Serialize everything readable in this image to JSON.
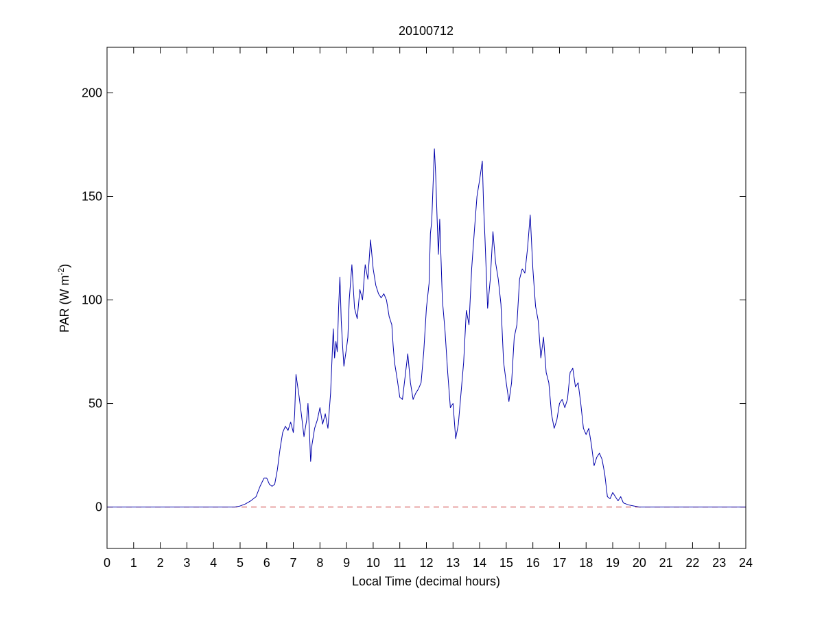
{
  "chart_data": {
    "type": "line",
    "title": "20100712",
    "xlabel": "Local Time (decimal hours)",
    "ylabel": {
      "base": "PAR (W m",
      "superscript": "-2",
      "tail": ")"
    },
    "xlim": [
      0,
      24
    ],
    "ylim": [
      -20,
      222
    ],
    "xticks": [
      0,
      1,
      2,
      3,
      4,
      5,
      6,
      7,
      8,
      9,
      10,
      11,
      12,
      13,
      14,
      15,
      16,
      17,
      18,
      19,
      20,
      21,
      22,
      23,
      24
    ],
    "yticks": [
      0,
      50,
      100,
      150,
      200
    ],
    "grid": false,
    "series": [
      {
        "color": "#0000aa",
        "style": "solid",
        "x": [
          0,
          4.8,
          5.0,
          5.2,
          5.4,
          5.5,
          5.6,
          5.75,
          5.9,
          6.0,
          6.1,
          6.2,
          6.3,
          6.4,
          6.5,
          6.6,
          6.7,
          6.8,
          6.9,
          7.0,
          7.05,
          7.1,
          7.2,
          7.3,
          7.4,
          7.5,
          7.55,
          7.6,
          7.65,
          7.7,
          7.8,
          7.9,
          8.0,
          8.1,
          8.2,
          8.3,
          8.4,
          8.5,
          8.55,
          8.6,
          8.65,
          8.7,
          8.75,
          8.8,
          8.85,
          8.9,
          9.0,
          9.05,
          9.1,
          9.2,
          9.3,
          9.4,
          9.5,
          9.6,
          9.7,
          9.8,
          9.9,
          10.0,
          10.1,
          10.2,
          10.3,
          10.4,
          10.5,
          10.6,
          10.7,
          10.75,
          10.8,
          10.9,
          11.0,
          11.1,
          11.2,
          11.3,
          11.4,
          11.5,
          11.6,
          11.7,
          11.8,
          11.9,
          12.0,
          12.1,
          12.15,
          12.2,
          12.3,
          12.35,
          12.4,
          12.45,
          12.5,
          12.6,
          12.7,
          12.8,
          12.9,
          13.0,
          13.1,
          13.2,
          13.3,
          13.4,
          13.5,
          13.6,
          13.7,
          13.8,
          13.9,
          14.0,
          14.1,
          14.15,
          14.2,
          14.3,
          14.4,
          14.5,
          14.6,
          14.7,
          14.8,
          14.9,
          15.0,
          15.1,
          15.2,
          15.3,
          15.4,
          15.5,
          15.6,
          15.7,
          15.8,
          15.9,
          16.0,
          16.1,
          16.2,
          16.3,
          16.4,
          16.5,
          16.6,
          16.7,
          16.8,
          16.9,
          17.0,
          17.1,
          17.2,
          17.3,
          17.4,
          17.5,
          17.6,
          17.7,
          17.8,
          17.9,
          18.0,
          18.1,
          18.2,
          18.3,
          18.4,
          18.5,
          18.6,
          18.7,
          18.8,
          18.9,
          19.0,
          19.1,
          19.2,
          19.3,
          19.4,
          19.5,
          19.6,
          19.8,
          20.0,
          24
        ],
        "y": [
          0,
          0,
          0.5,
          1.5,
          3,
          4,
          5,
          10,
          14,
          14,
          11,
          10,
          11,
          18,
          28,
          36,
          39,
          37,
          41,
          36,
          45,
          64,
          55,
          45,
          34,
          42,
          50,
          38,
          22,
          30,
          38,
          42,
          48,
          40,
          45,
          38,
          55,
          86,
          72,
          80,
          75,
          96,
          111,
          90,
          78,
          68,
          77,
          82,
          100,
          117,
          96,
          91,
          105,
          100,
          117,
          110,
          129,
          115,
          107,
          103,
          101,
          103,
          100,
          92,
          88,
          78,
          70,
          62,
          53,
          52,
          63,
          74,
          60,
          52,
          55,
          57,
          60,
          75,
          96,
          108,
          132,
          138,
          173,
          160,
          140,
          122,
          139,
          100,
          85,
          65,
          48,
          50,
          33,
          40,
          55,
          70,
          95,
          88,
          115,
          133,
          150,
          158,
          167,
          145,
          130,
          96,
          110,
          133,
          118,
          110,
          98,
          70,
          60,
          51,
          60,
          82,
          88,
          110,
          115,
          113,
          125,
          141,
          115,
          97,
          90,
          72,
          82,
          65,
          60,
          45,
          38,
          42,
          50,
          52,
          48,
          52,
          65,
          67,
          58,
          60,
          50,
          38,
          35,
          38,
          30,
          20,
          24,
          26,
          23,
          16,
          5,
          4,
          7,
          5,
          3,
          5,
          2,
          1.5,
          1,
          0.5,
          0,
          0
        ]
      },
      {
        "color": "#cc3333",
        "style": "dashed",
        "x": [
          0,
          24
        ],
        "y": [
          0,
          0
        ]
      }
    ]
  }
}
